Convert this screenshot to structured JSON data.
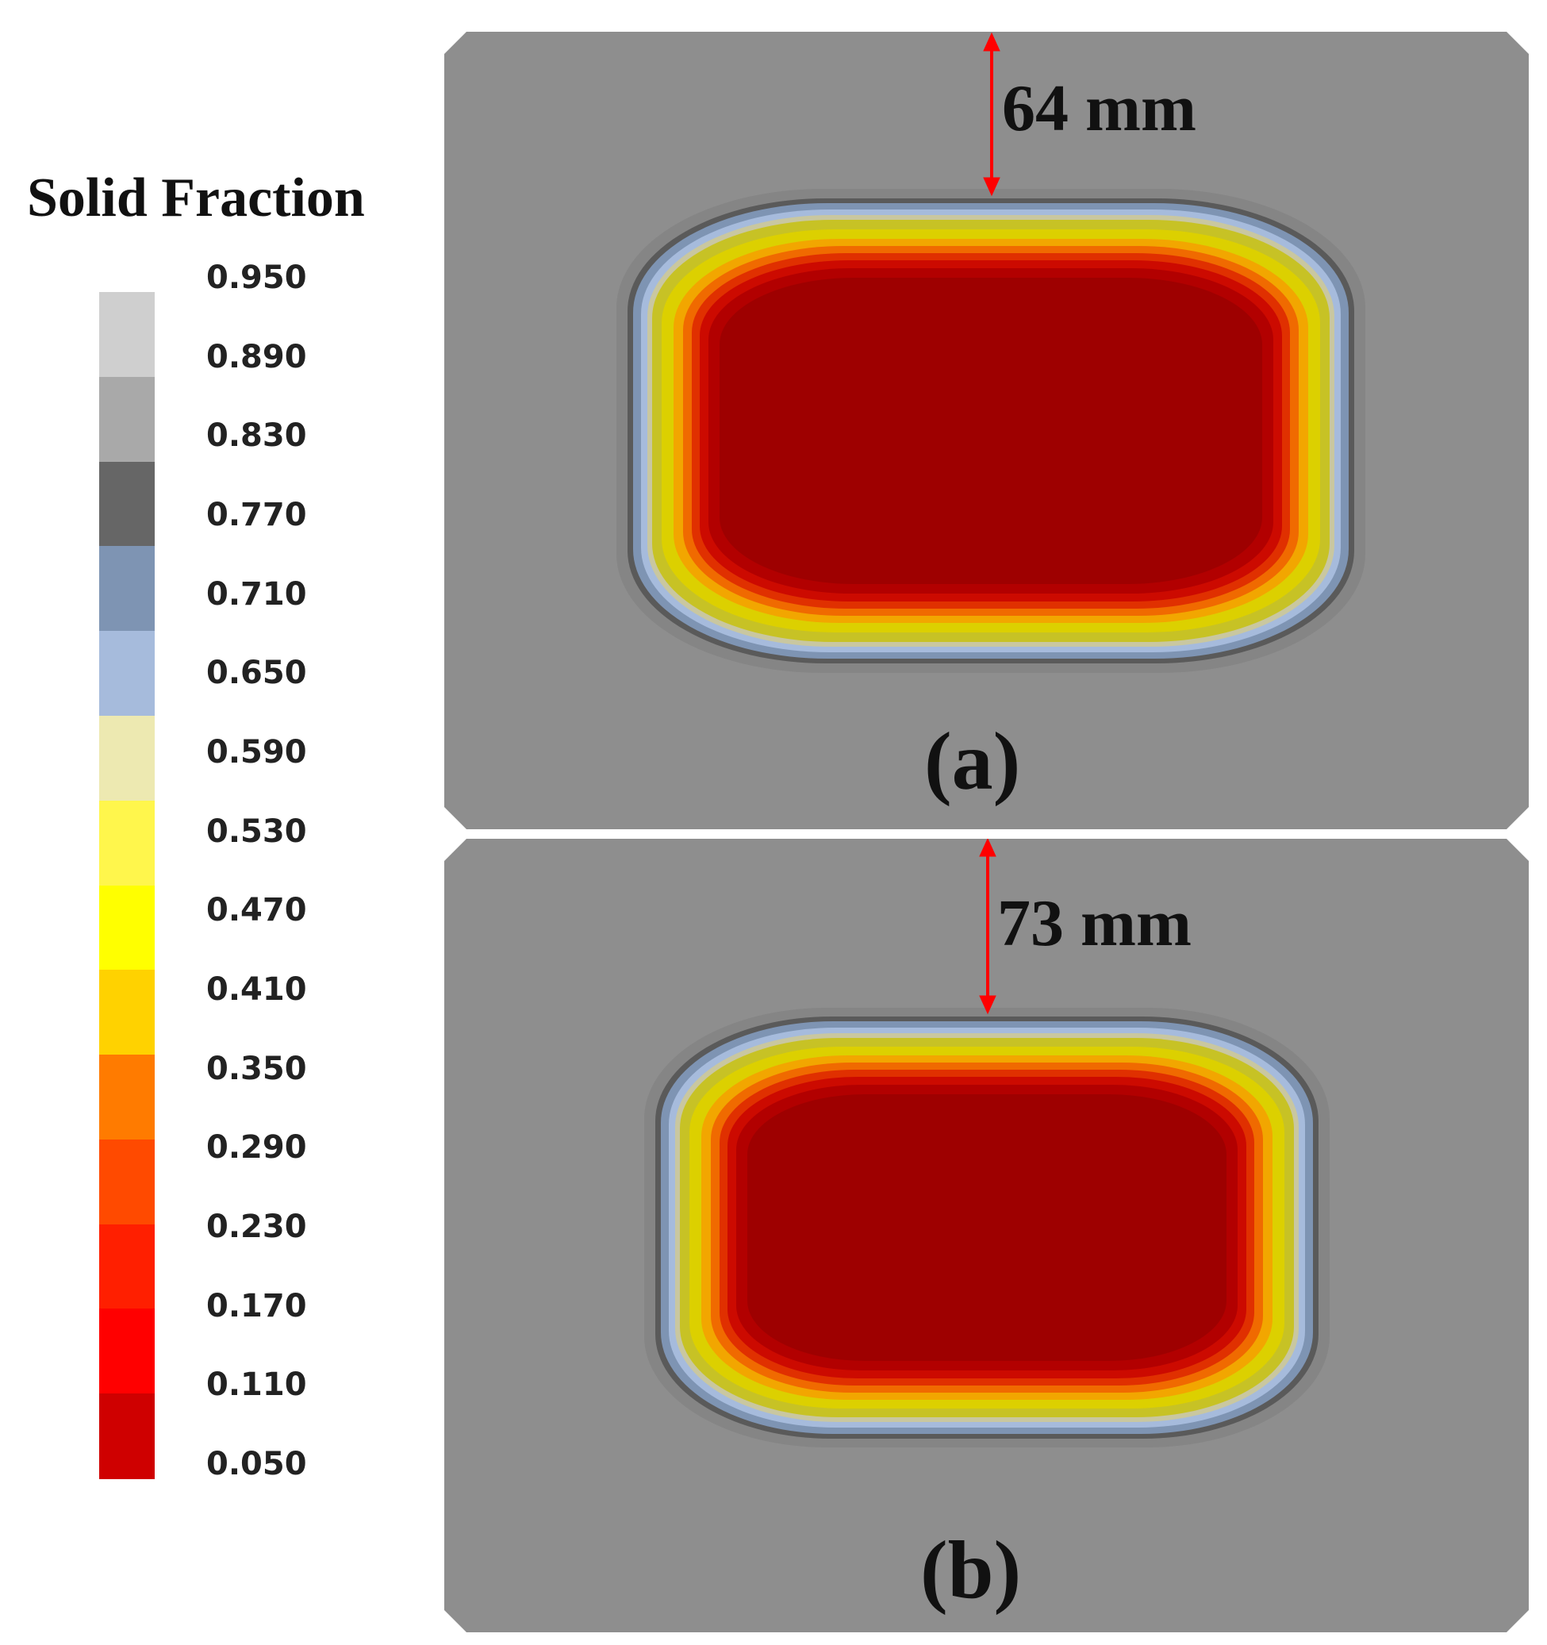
{
  "legend": {
    "title": "Solid Fraction",
    "ticks": [
      "0.950",
      "0.890",
      "0.830",
      "0.770",
      "0.710",
      "0.650",
      "0.590",
      "0.530",
      "0.470",
      "0.410",
      "0.350",
      "0.290",
      "0.230",
      "0.170",
      "0.110",
      "0.050"
    ],
    "colors": [
      "#cfcfcf",
      "#a9a9a9",
      "#666666",
      "#7e94b3",
      "#a6bbdc",
      "#ede9b1",
      "#fff64c",
      "#ffff00",
      "#ffd200",
      "#ff7b00",
      "#ff4a00",
      "#ff1f00",
      "#ff0000",
      "#cf0000"
    ]
  },
  "panels": [
    {
      "label": "(a)",
      "dimension": "64 mm"
    },
    {
      "label": "(b)",
      "dimension": "73 mm"
    }
  ],
  "colors": {
    "background_gray": "#8e8e8e",
    "core_red": "#9e0000",
    "arrow_red": "#ff0000"
  }
}
